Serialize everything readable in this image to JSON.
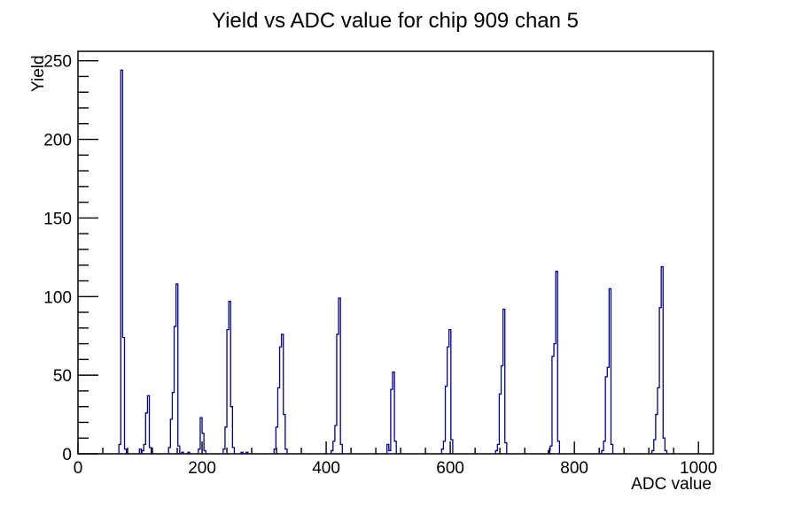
{
  "window": {
    "background": "#ffffff"
  },
  "chart_data": {
    "type": "bar",
    "title": "Yield vs ADC value for chip 909 chan 5",
    "xlabel": "ADC value",
    "ylabel": "Yield",
    "xlim": [
      0,
      1024
    ],
    "ylim": [
      0,
      256
    ],
    "x_major_ticks": [
      0,
      200,
      400,
      600,
      800,
      1000
    ],
    "x_tick_labels": [
      "0",
      "200",
      "400",
      "600",
      "800",
      "1000"
    ],
    "x_minor_step": 40,
    "y_major_ticks": [
      0,
      50,
      100,
      150,
      200,
      250
    ],
    "y_tick_labels": [
      "0",
      "50",
      "100",
      "150",
      "200",
      "250"
    ],
    "y_minor_step": 10,
    "grid": false,
    "legend_position": "none",
    "line_color": "#00008c",
    "axis_color": "#000000",
    "bin_width_adc": 3,
    "peaks": [
      {
        "adc": 71,
        "yield": 244
      },
      {
        "adc": 113,
        "yield": 37
      },
      {
        "adc": 159,
        "yield": 108
      },
      {
        "adc": 199,
        "yield": 23
      },
      {
        "adc": 245,
        "yield": 97
      },
      {
        "adc": 330,
        "yield": 76
      },
      {
        "adc": 421,
        "yield": 99
      },
      {
        "adc": 508,
        "yield": 52
      },
      {
        "adc": 599,
        "yield": 79
      },
      {
        "adc": 686,
        "yield": 92
      },
      {
        "adc": 771,
        "yield": 116
      },
      {
        "adc": 857,
        "yield": 105
      },
      {
        "adc": 941,
        "yield": 119
      }
    ],
    "clusters": [
      {
        "start_adc": 66,
        "bin_heights": [
          6,
          244,
          74,
          3
        ]
      },
      {
        "start_adc": 99,
        "bin_heights": [
          3
        ]
      },
      {
        "start_adc": 103,
        "bin_heights": [
          2,
          6,
          26,
          37,
          4
        ]
      },
      {
        "start_adc": 146,
        "bin_heights": [
          4,
          22,
          39,
          81,
          108,
          5
        ]
      },
      {
        "start_adc": 167,
        "bin_heights": [
          1
        ]
      },
      {
        "start_adc": 177,
        "bin_heights": [
          1
        ]
      },
      {
        "start_adc": 194,
        "bin_heights": [
          3,
          23,
          13,
          2
        ]
      },
      {
        "start_adc": 234,
        "bin_heights": [
          3,
          17,
          79,
          97,
          30,
          4
        ]
      },
      {
        "start_adc": 263,
        "bin_heights": [
          1
        ]
      },
      {
        "start_adc": 271,
        "bin_heights": [
          1
        ]
      },
      {
        "start_adc": 316,
        "bin_heights": [
          3,
          17,
          42,
          68,
          76,
          25,
          3
        ]
      },
      {
        "start_adc": 408,
        "bin_heights": [
          2,
          8,
          18,
          76,
          99,
          6
        ]
      },
      {
        "start_adc": 498,
        "bin_heights": [
          6,
          2,
          41,
          52,
          8
        ]
      },
      {
        "start_adc": 586,
        "bin_heights": [
          3,
          8,
          43,
          68,
          79,
          9
        ]
      },
      {
        "start_adc": 673,
        "bin_heights": [
          2,
          6,
          38,
          56,
          92,
          7
        ]
      },
      {
        "start_adc": 758,
        "bin_heights": [
          2,
          5,
          62,
          70,
          116,
          8
        ]
      },
      {
        "start_adc": 844,
        "bin_heights": [
          2,
          8,
          49,
          55,
          105,
          6
        ]
      },
      {
        "start_adc": 925,
        "bin_heights": [
          2,
          9,
          25,
          42,
          93,
          119,
          10,
          2
        ]
      }
    ]
  }
}
